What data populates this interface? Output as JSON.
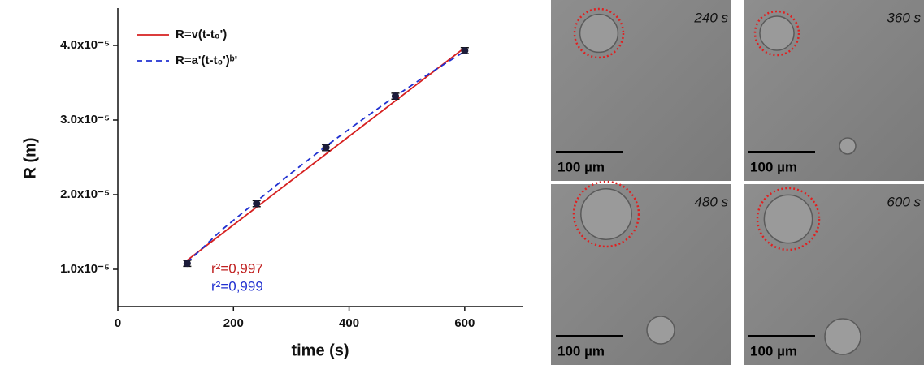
{
  "chart_data": {
    "type": "scatter",
    "xlabel": "time (s)",
    "ylabel": "R (m)",
    "xlim": [
      0,
      700
    ],
    "xticks": [
      0,
      200,
      400,
      600
    ],
    "ylim": [
      5e-06,
      4.5e-05
    ],
    "yticks": [
      {
        "value": 1e-05,
        "label": "1.0x10⁻⁵"
      },
      {
        "value": 2e-05,
        "label": "2.0x10⁻⁵"
      },
      {
        "value": 3e-05,
        "label": "3.0x10⁻⁵"
      },
      {
        "value": 4e-05,
        "label": "4.0x10⁻⁵"
      }
    ],
    "points": {
      "color": "#1c1c3a",
      "x": [
        120,
        240,
        360,
        480,
        600
      ],
      "values": [
        1.08e-05,
        1.88e-05,
        2.63e-05,
        3.32e-05,
        3.93e-05
      ],
      "errors": [
        4e-07,
        4e-07,
        4e-07,
        4e-07,
        4e-07
      ]
    },
    "series": [
      {
        "name": "R=v(t-t₀')",
        "color": "#d62020",
        "style": "solid",
        "x": [
          120,
          600
        ],
        "values": [
          1.12e-05,
          3.97e-05
        ]
      },
      {
        "name": "R=a'(t-t₀')ᵇ'",
        "color": "#2030d0",
        "style": "dashed",
        "x": [
          120,
          180,
          240,
          300,
          360,
          420,
          480,
          540,
          600
        ],
        "values": [
          1.09e-05,
          1.53e-05,
          1.91e-05,
          2.29e-05,
          2.65e-05,
          2.99e-05,
          3.32e-05,
          3.63e-05,
          3.92e-05
        ]
      }
    ],
    "annotations": [
      {
        "text": "r²=0,997",
        "color": "#c02020"
      },
      {
        "text": "r²=0,999",
        "color": "#2030d0"
      }
    ],
    "legend": "upper left"
  },
  "images": [
    {
      "time": "240 s",
      "scale": "100 µm"
    },
    {
      "time": "360 s",
      "scale": "100 µm"
    },
    {
      "time": "480 s",
      "scale": "100 µm"
    },
    {
      "time": "600 s",
      "scale": "100 µm"
    }
  ]
}
